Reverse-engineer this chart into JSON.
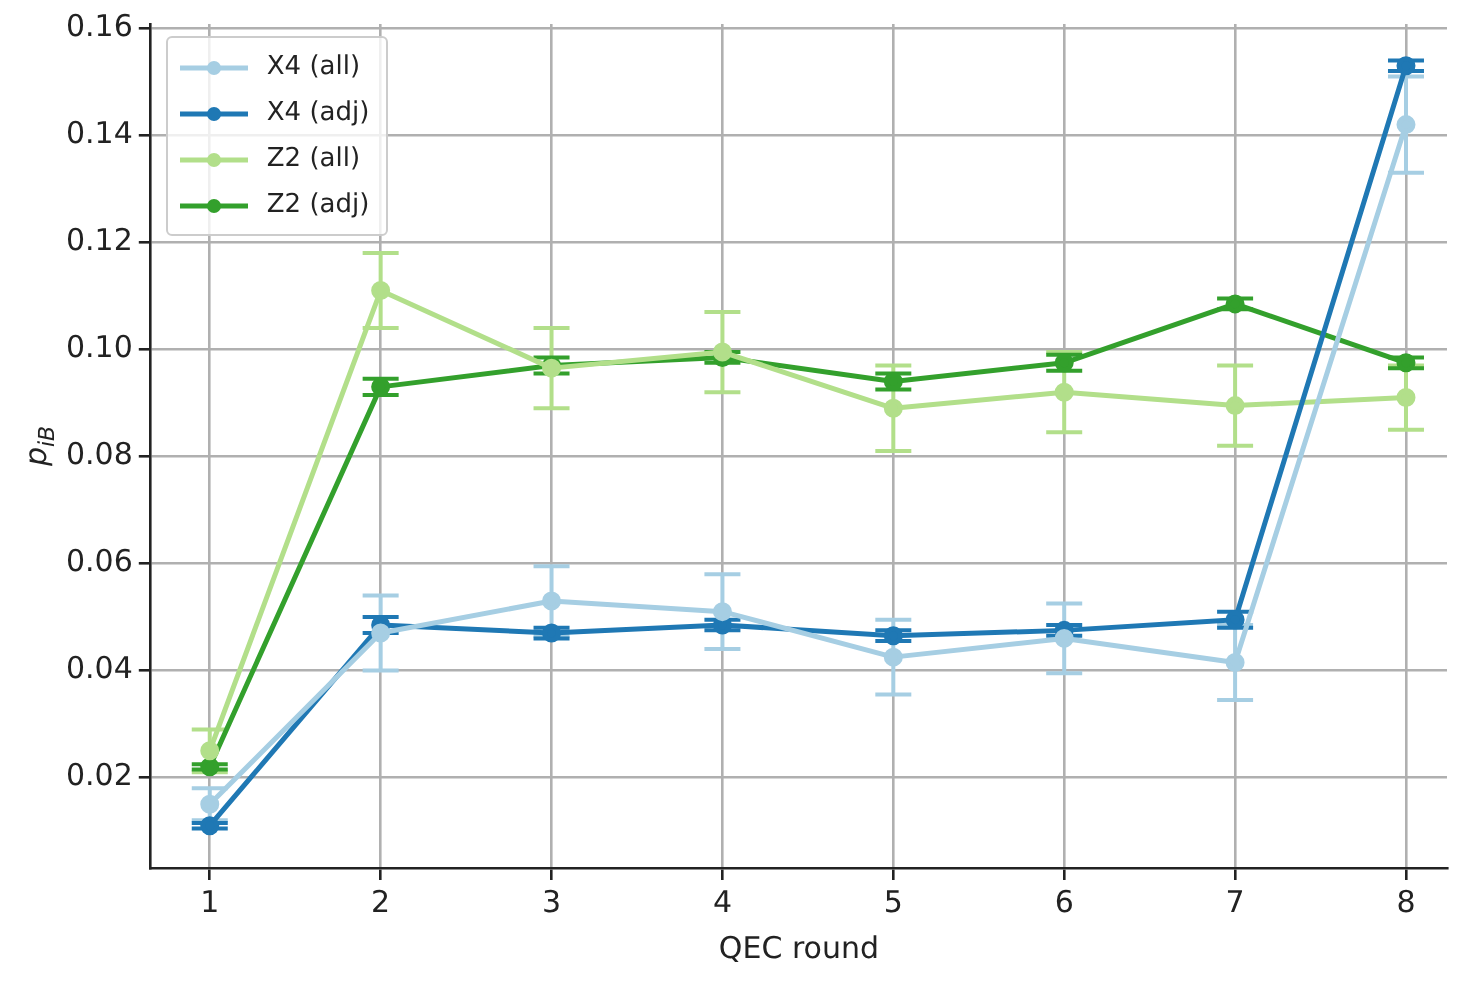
{
  "chart_data": {
    "type": "line",
    "xlabel": "QEC round",
    "ylabel": "p$_{iB}$",
    "x": [
      1,
      2,
      3,
      4,
      5,
      6,
      7,
      8
    ],
    "xlim": [
      0.655,
      8.24
    ],
    "xticks": [
      1,
      2,
      3,
      4,
      5,
      6,
      7,
      8
    ],
    "ylim": [
      0.0031,
      0.1608
    ],
    "yticks": [
      0.02,
      0.04,
      0.06,
      0.08,
      {
        "value": 0.1,
        "label": "0.10"
      },
      0.12,
      0.14,
      0.16
    ],
    "grid": true,
    "legend": "top left",
    "marker": "circle",
    "line_style": "solid",
    "series": [
      {
        "name": "X4 (all)",
        "color": "#a6cee3",
        "values": [
          0.015,
          0.047,
          0.053,
          0.051,
          0.0425,
          0.046,
          0.0415,
          0.142
        ],
        "errors": [
          0.003,
          0.007,
          0.0065,
          0.007,
          0.007,
          0.0065,
          0.007,
          0.009
        ]
      },
      {
        "name": "X4 (adj)",
        "color": "#1f78b4",
        "values": [
          0.011,
          0.0485,
          0.047,
          0.0485,
          0.0465,
          0.0475,
          0.0495,
          0.153
        ],
        "errors": [
          0.0005,
          0.0015,
          0.001,
          0.001,
          0.001,
          0.001,
          0.0015,
          0.001
        ]
      },
      {
        "name": "Z2 (all)",
        "color": "#b2df8a",
        "values": [
          0.025,
          0.111,
          0.0965,
          0.0995,
          0.089,
          0.092,
          0.0895,
          0.091
        ],
        "errors": [
          0.004,
          0.007,
          0.0075,
          0.0075,
          0.008,
          0.0075,
          0.0075,
          0.006
        ]
      },
      {
        "name": "Z2 (adj)",
        "color": "#33a02c",
        "values": [
          0.022,
          0.093,
          0.097,
          0.0985,
          0.094,
          0.0975,
          0.1085,
          0.0975
        ],
        "errors": [
          0.0005,
          0.0015,
          0.0015,
          0.001,
          0.0015,
          0.0015,
          0.001,
          0.001
        ]
      }
    ]
  }
}
